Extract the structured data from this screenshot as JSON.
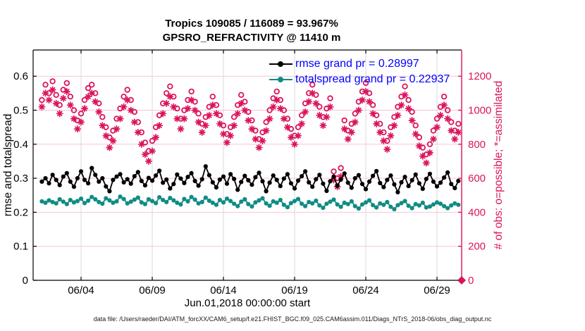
{
  "title": {
    "line1": "Tropics 109085 / 116089 = 93.967%",
    "line2": "GPSRO_REFRACTIVITY @ 11410 m"
  },
  "footer": "data file: /Users/raeder/DAI/ATM_forcXX/CAM6_setup/f.e21.FHIST_BGC.f09_025.CAM6assim.011/Diags_NTrS_2018-06/obs_diag_output.nc",
  "legend": [
    {
      "label": "rmse grand pr = 0.28997",
      "color": "#000000"
    },
    {
      "label": "totalspread grand pr = 0.22937",
      "color": "#108C84"
    }
  ],
  "colors": {
    "pink": "#DB145C",
    "teal": "#108C84",
    "black": "#000000",
    "legend_text": "#0000FF",
    "grid_vertical": "#D9D9D9",
    "grid_horizontal": "#F6C4D6"
  },
  "axes": {
    "x": {
      "label": "Jun.01,2018 00:00:00 start",
      "tick_labels": [
        "06/04",
        "06/09",
        "06/14",
        "06/19",
        "06/24",
        "06/29"
      ],
      "tick_days": [
        3,
        8,
        13,
        18,
        23,
        28
      ]
    },
    "left": {
      "label": "rmse and totalspread",
      "tick_values": [
        0,
        0.1,
        0.2,
        0.3,
        0.4,
        0.5,
        0.6
      ],
      "tick_labels": [
        "0",
        "0.1",
        "0.2",
        "0.3",
        "0.4",
        "0.5",
        "0.6"
      ],
      "range": [
        0,
        0.677
      ]
    },
    "right": {
      "label": "# of obs: o=possible; *=assimilated",
      "tick_values": [
        0,
        200,
        400,
        600,
        800,
        1000,
        1200
      ],
      "tick_labels": [
        "0",
        "200",
        "400",
        "600",
        "800",
        "1000",
        "1200"
      ],
      "range": [
        0,
        1354
      ]
    }
  },
  "chart_data": {
    "type": "line",
    "title": "Tropics 109085 / 116089 = 93.967% — GPSRO_REFRACTIVITY @ 11410 m",
    "xlabel": "Jun.01,2018 00:00:00 start",
    "ylabel_left": "rmse and totalspread",
    "ylabel_right": "# of obs: o=possible; *=assimilated",
    "ylim_left": [
      0,
      0.677
    ],
    "ylim_right": [
      0,
      1354
    ],
    "grid": true,
    "legend_position": "top-center",
    "x_days": {
      "start": 0.25,
      "step": 0.25,
      "count": 118,
      "note": "days after Jun.01,2018 00:00:00"
    },
    "series": [
      {
        "name": "rmse",
        "axis": "left",
        "color": "#000000",
        "marker": "filled-circle",
        "grand_pr": 0.28997,
        "values": [
          0.29,
          0.3,
          0.285,
          0.31,
          0.295,
          0.28,
          0.305,
          0.315,
          0.29,
          0.275,
          0.3,
          0.32,
          0.295,
          0.285,
          0.33,
          0.31,
          0.29,
          0.3,
          0.276,
          0.262,
          0.295,
          0.305,
          0.312,
          0.288,
          0.297,
          0.284,
          0.306,
          0.318,
          0.292,
          0.279,
          0.301,
          0.293,
          0.308,
          0.322,
          0.287,
          0.296,
          0.27,
          0.283,
          0.311,
          0.299,
          0.286,
          0.304,
          0.315,
          0.292,
          0.278,
          0.297,
          0.335,
          0.309,
          0.288,
          0.273,
          0.296,
          0.305,
          0.284,
          0.312,
          0.298,
          0.266,
          0.289,
          0.307,
          0.294,
          0.281,
          0.303,
          0.316,
          0.291,
          0.262,
          0.287,
          0.308,
          0.295,
          0.277,
          0.299,
          0.312,
          0.285,
          0.27,
          0.293,
          0.306,
          0.32,
          0.288,
          0.275,
          0.297,
          0.31,
          0.284,
          0.263,
          0.291,
          0.305,
          0.278,
          0.296,
          0.314,
          0.287,
          0.272,
          0.3,
          0.309,
          0.283,
          0.268,
          0.29,
          0.307,
          0.321,
          0.286,
          0.274,
          0.295,
          0.308,
          0.282,
          0.259,
          0.288,
          0.304,
          0.277,
          0.294,
          0.311,
          0.285,
          0.269,
          0.298,
          0.313,
          0.29,
          0.276,
          0.287,
          0.302,
          0.317,
          0.283,
          0.271,
          0.292
        ]
      },
      {
        "name": "totalspread",
        "axis": "left",
        "color": "#108C84",
        "marker": "filled-circle",
        "grand_pr": 0.22937,
        "values": [
          0.232,
          0.228,
          0.235,
          0.23,
          0.226,
          0.238,
          0.231,
          0.224,
          0.236,
          0.229,
          0.233,
          0.24,
          0.227,
          0.234,
          0.245,
          0.238,
          0.23,
          0.225,
          0.241,
          0.235,
          0.228,
          0.232,
          0.246,
          0.239,
          0.226,
          0.231,
          0.237,
          0.243,
          0.229,
          0.224,
          0.238,
          0.233,
          0.227,
          0.244,
          0.236,
          0.23,
          0.242,
          0.235,
          0.228,
          0.223,
          0.239,
          0.232,
          0.245,
          0.237,
          0.226,
          0.23,
          0.243,
          0.234,
          0.228,
          0.222,
          0.236,
          0.229,
          0.24,
          0.233,
          0.225,
          0.218,
          0.231,
          0.238,
          0.224,
          0.217,
          0.229,
          0.235,
          0.241,
          0.226,
          0.219,
          0.232,
          0.228,
          0.236,
          0.222,
          0.215,
          0.227,
          0.233,
          0.239,
          0.225,
          0.218,
          0.23,
          0.226,
          0.234,
          0.22,
          0.213,
          0.225,
          0.231,
          0.237,
          0.223,
          0.216,
          0.228,
          0.224,
          0.232,
          0.218,
          0.211,
          0.223,
          0.229,
          0.235,
          0.221,
          0.214,
          0.226,
          0.222,
          0.23,
          0.216,
          0.209,
          0.221,
          0.227,
          0.233,
          0.219,
          0.212,
          0.224,
          0.22,
          0.228,
          0.214,
          0.217,
          0.223,
          0.229,
          0.225,
          0.218,
          0.212,
          0.22,
          0.226,
          0.222
        ]
      },
      {
        "name": "possible",
        "axis": "right",
        "color": "#DB145C",
        "marker": "open-circle",
        "values": [
          1060,
          1150,
          1100,
          1170,
          1090,
          1030,
          1120,
          1160,
          1080,
          1000,
          940,
          980,
          1060,
          1130,
          1150,
          1100,
          1040,
          960,
          900,
          840,
          880,
          950,
          1010,
          1080,
          1120,
          1060,
          990,
          930,
          870,
          810,
          760,
          820,
          900,
          970,
          1040,
          1100,
          1140,
          1080,
          1010,
          950,
          1000,
          1060,
          1110,
          1050,
          980,
          920,
          960,
          1020,
          1080,
          1030,
          970,
          910,
          860,
          900,
          960,
          1030,
          1090,
          1050,
          990,
          940,
          880,
          830,
          870,
          930,
          1000,
          1070,
          1110,
          1060,
          1000,
          950,
          890,
          850,
          900,
          970,
          1040,
          1100,
          1150,
          1090,
          1020,
          960,
          1010,
          1070,
          640,
          600,
          660,
          940,
          880,
          920,
          980,
          1050,
          1110,
          1160,
          1100,
          1030,
          970,
          920,
          870,
          820,
          900,
          960,
          1020,
          1080,
          1140,
          1060,
          990,
          910,
          840,
          780,
          740,
          800,
          880,
          950,
          1020,
          1080,
          1000,
          930,
          880,
          920
        ]
      },
      {
        "name": "assimilated",
        "axis": "right",
        "color": "#DB145C",
        "marker": "asterisk",
        "values": [
          1020,
          1100,
          1060,
          1120,
          1040,
          980,
          1070,
          1110,
          1030,
          950,
          890,
          930,
          1010,
          1080,
          1100,
          1050,
          990,
          910,
          850,
          780,
          820,
          890,
          950,
          1020,
          1060,
          1000,
          930,
          870,
          800,
          740,
          700,
          760,
          840,
          910,
          980,
          1040,
          1080,
          1020,
          950,
          890,
          950,
          1010,
          1060,
          1000,
          930,
          870,
          910,
          970,
          1030,
          980,
          920,
          860,
          810,
          850,
          910,
          980,
          1040,
          1000,
          940,
          890,
          830,
          780,
          820,
          880,
          950,
          1020,
          1060,
          1010,
          950,
          900,
          840,
          800,
          850,
          920,
          990,
          1050,
          1100,
          1040,
          970,
          910,
          960,
          1020,
          590,
          550,
          610,
          890,
          830,
          870,
          930,
          1000,
          1060,
          1110,
          1050,
          980,
          920,
          870,
          820,
          770,
          850,
          910,
          970,
          1030,
          1090,
          1010,
          940,
          860,
          790,
          730,
          690,
          750,
          830,
          900,
          970,
          1030,
          950,
          880,
          830,
          870
        ]
      },
      {
        "name": "end-marker",
        "axis": "right",
        "color": "#DB145C",
        "marker": "filled-diamond",
        "x_day": 29.73,
        "value": 0
      }
    ]
  }
}
